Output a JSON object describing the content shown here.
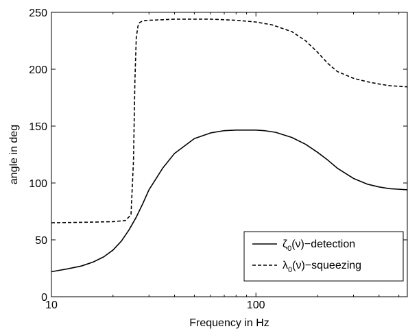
{
  "chart_data": {
    "type": "line",
    "xlabel": "Frequency in Hz",
    "ylabel": "angle in deg",
    "xscale": "log",
    "xlim": [
      10,
      550
    ],
    "ylim": [
      0,
      250
    ],
    "xticks": [
      10,
      100
    ],
    "xtick_labels": [
      "10",
      "100"
    ],
    "yticks": [
      0,
      50,
      100,
      150,
      200,
      250
    ],
    "ytick_labels": [
      "0",
      "50",
      "100",
      "150",
      "200",
      "250"
    ],
    "grid": false,
    "legend_position": "bottom-right",
    "series": [
      {
        "legend_symbol": "ζ",
        "legend_sub": "0",
        "legend_rest": "(ν)−detection",
        "line_style": "solid",
        "x": [
          10,
          12,
          14,
          16,
          18,
          20,
          22,
          24,
          26,
          28,
          30,
          35,
          40,
          50,
          60,
          70,
          80,
          90,
          100,
          110,
          125,
          150,
          175,
          200,
          225,
          250,
          300,
          350,
          400,
          450,
          500,
          550
        ],
        "y": [
          22,
          24.5,
          27,
          30.5,
          35,
          41,
          49,
          59,
          70,
          82,
          94,
          113,
          126,
          139,
          144,
          146,
          146.5,
          146.5,
          146.5,
          146,
          144.5,
          140,
          134,
          127,
          120,
          113,
          104,
          99,
          96.5,
          95,
          94.5,
          94
        ]
      },
      {
        "legend_symbol": "λ",
        "legend_sub": "0",
        "legend_rest": "(ν)−squeezing",
        "line_style": "dashed",
        "x": [
          10,
          15,
          20,
          23,
          24.5,
          25.2,
          25.6,
          26,
          26.5,
          27,
          28,
          30,
          35,
          40,
          50,
          60,
          70,
          80,
          100,
          120,
          150,
          175,
          200,
          225,
          250,
          300,
          350,
          400,
          450,
          500,
          550
        ],
        "y": [
          65,
          65.5,
          66,
          67,
          72,
          120,
          190,
          228,
          238,
          241,
          242.5,
          243,
          243.5,
          244,
          244,
          244,
          243.5,
          243,
          241.5,
          239,
          233,
          225,
          215,
          205,
          198,
          192,
          189,
          187,
          185.5,
          185,
          184.5
        ]
      }
    ]
  }
}
